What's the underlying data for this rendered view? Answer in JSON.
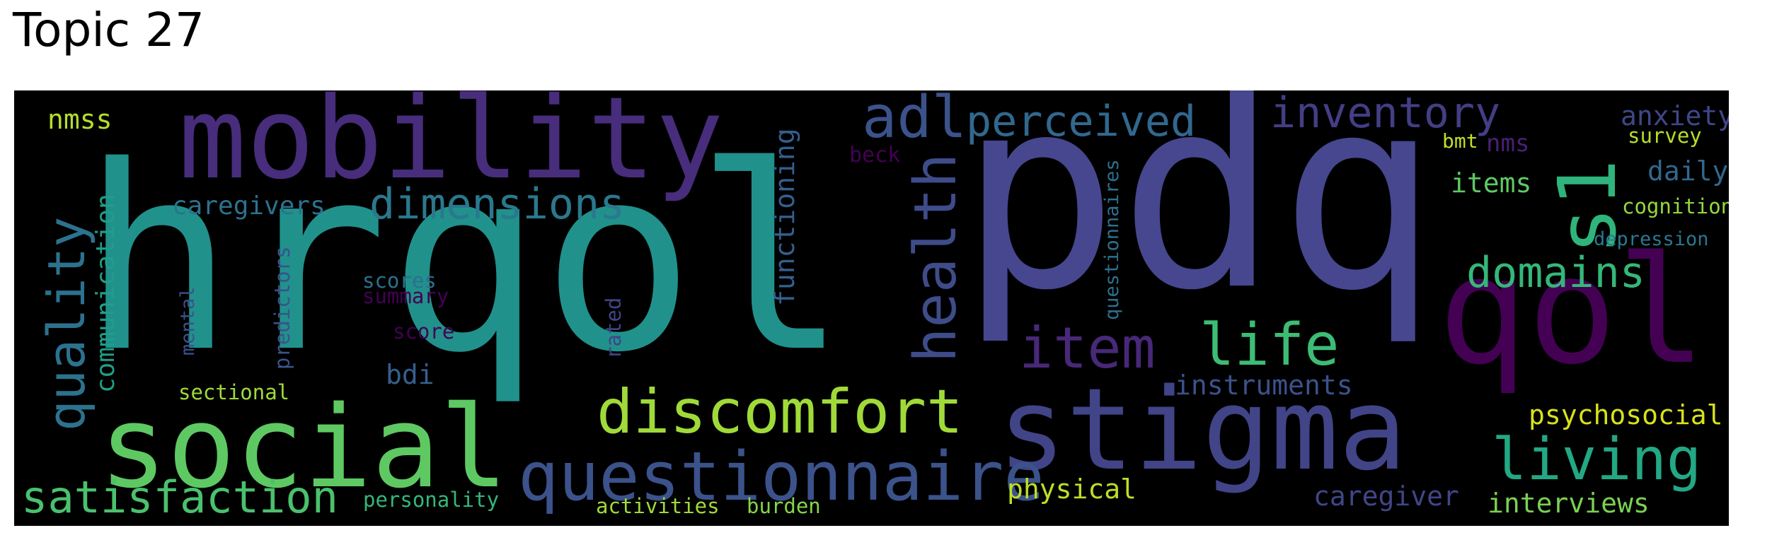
{
  "title": "Topic 27",
  "colors": {
    "background": "#000000",
    "title_text": "#000000",
    "page": "#ffffff"
  },
  "words": [
    {
      "id": "hrqol",
      "text": "hrqol",
      "color": "#21918c"
    },
    {
      "id": "pdq",
      "text": "pdq",
      "color": "#46478f"
    },
    {
      "id": "mobility",
      "text": "mobility",
      "color": "#472d7b"
    },
    {
      "id": "social",
      "text": "social",
      "color": "#5ec962"
    },
    {
      "id": "stigma",
      "text": "stigma",
      "color": "#414487"
    },
    {
      "id": "qol",
      "text": "qol",
      "color": "#440154"
    },
    {
      "id": "questionnaire",
      "text": "questionnaire",
      "color": "#3b528b"
    },
    {
      "id": "discomfort",
      "text": "discomfort",
      "color": "#a0da39"
    },
    {
      "id": "satisfaction",
      "text": "satisfaction",
      "color": "#4ac16d"
    },
    {
      "id": "quality",
      "text": "quality",
      "color": "#2c728e"
    },
    {
      "id": "health",
      "text": "health",
      "color": "#3e4c8a"
    },
    {
      "id": "life",
      "text": "life",
      "color": "#3dbc74"
    },
    {
      "id": "item",
      "text": "item",
      "color": "#482878"
    },
    {
      "id": "living",
      "text": "living",
      "color": "#22a884"
    },
    {
      "id": "s1",
      "text": "s1",
      "color": "#2fb47c"
    },
    {
      "id": "adl",
      "text": "adl",
      "color": "#3b528b"
    },
    {
      "id": "perceived",
      "text": "perceived",
      "color": "#31688e"
    },
    {
      "id": "inventory",
      "text": "inventory",
      "color": "#433e85"
    },
    {
      "id": "dimensions",
      "text": "dimensions",
      "color": "#2a788e"
    },
    {
      "id": "domains",
      "text": "domains",
      "color": "#35b779"
    },
    {
      "id": "caregivers",
      "text": "caregivers",
      "color": "#2c728e"
    },
    {
      "id": "communication",
      "text": "communication",
      "color": "#1f9e89"
    },
    {
      "id": "functioning",
      "text": "functioning",
      "color": "#355f8d"
    },
    {
      "id": "questionnaires",
      "text": "questionnaires",
      "color": "#2d708e"
    },
    {
      "id": "instruments",
      "text": "instruments",
      "color": "#3b528b"
    },
    {
      "id": "psychosocial",
      "text": "psychosocial",
      "color": "#d8e219"
    },
    {
      "id": "physical",
      "text": "physical",
      "color": "#bddf26"
    },
    {
      "id": "caregiver",
      "text": "caregiver",
      "color": "#404688"
    },
    {
      "id": "interviews",
      "text": "interviews",
      "color": "#7ad151"
    },
    {
      "id": "anxiety",
      "text": "anxiety",
      "color": "#3f4788"
    },
    {
      "id": "survey",
      "text": "survey",
      "color": "#b5de2b"
    },
    {
      "id": "daily",
      "text": "daily",
      "color": "#31688e"
    },
    {
      "id": "cognition",
      "text": "cognition",
      "color": "#95d840"
    },
    {
      "id": "depression",
      "text": "depression",
      "color": "#2a788e"
    },
    {
      "id": "items",
      "text": "items",
      "color": "#5ec962"
    },
    {
      "id": "bmt",
      "text": "bmt",
      "color": "#c2df23"
    },
    {
      "id": "nms",
      "text": "nms",
      "color": "#482173"
    },
    {
      "id": "nmss",
      "text": "nmss",
      "color": "#b5de2b"
    },
    {
      "id": "beck",
      "text": "beck",
      "color": "#440154"
    },
    {
      "id": "scores",
      "text": "scores",
      "color": "#2d708e"
    },
    {
      "id": "summary",
      "text": "summary",
      "color": "#440154"
    },
    {
      "id": "score",
      "text": "score",
      "color": "#440154"
    },
    {
      "id": "bdi",
      "text": "bdi",
      "color": "#355f8d"
    },
    {
      "id": "mental",
      "text": "mental",
      "color": "#3b528b"
    },
    {
      "id": "predictors",
      "text": "predictors",
      "color": "#3b528b"
    },
    {
      "id": "rated",
      "text": "rated",
      "color": "#414487"
    },
    {
      "id": "sectional",
      "text": "sectional",
      "color": "#a0da39"
    },
    {
      "id": "personality",
      "text": "personality",
      "color": "#35b779"
    },
    {
      "id": "activities",
      "text": "activities",
      "color": "#a0da39"
    },
    {
      "id": "burden",
      "text": "burden",
      "color": "#86d549"
    }
  ]
}
